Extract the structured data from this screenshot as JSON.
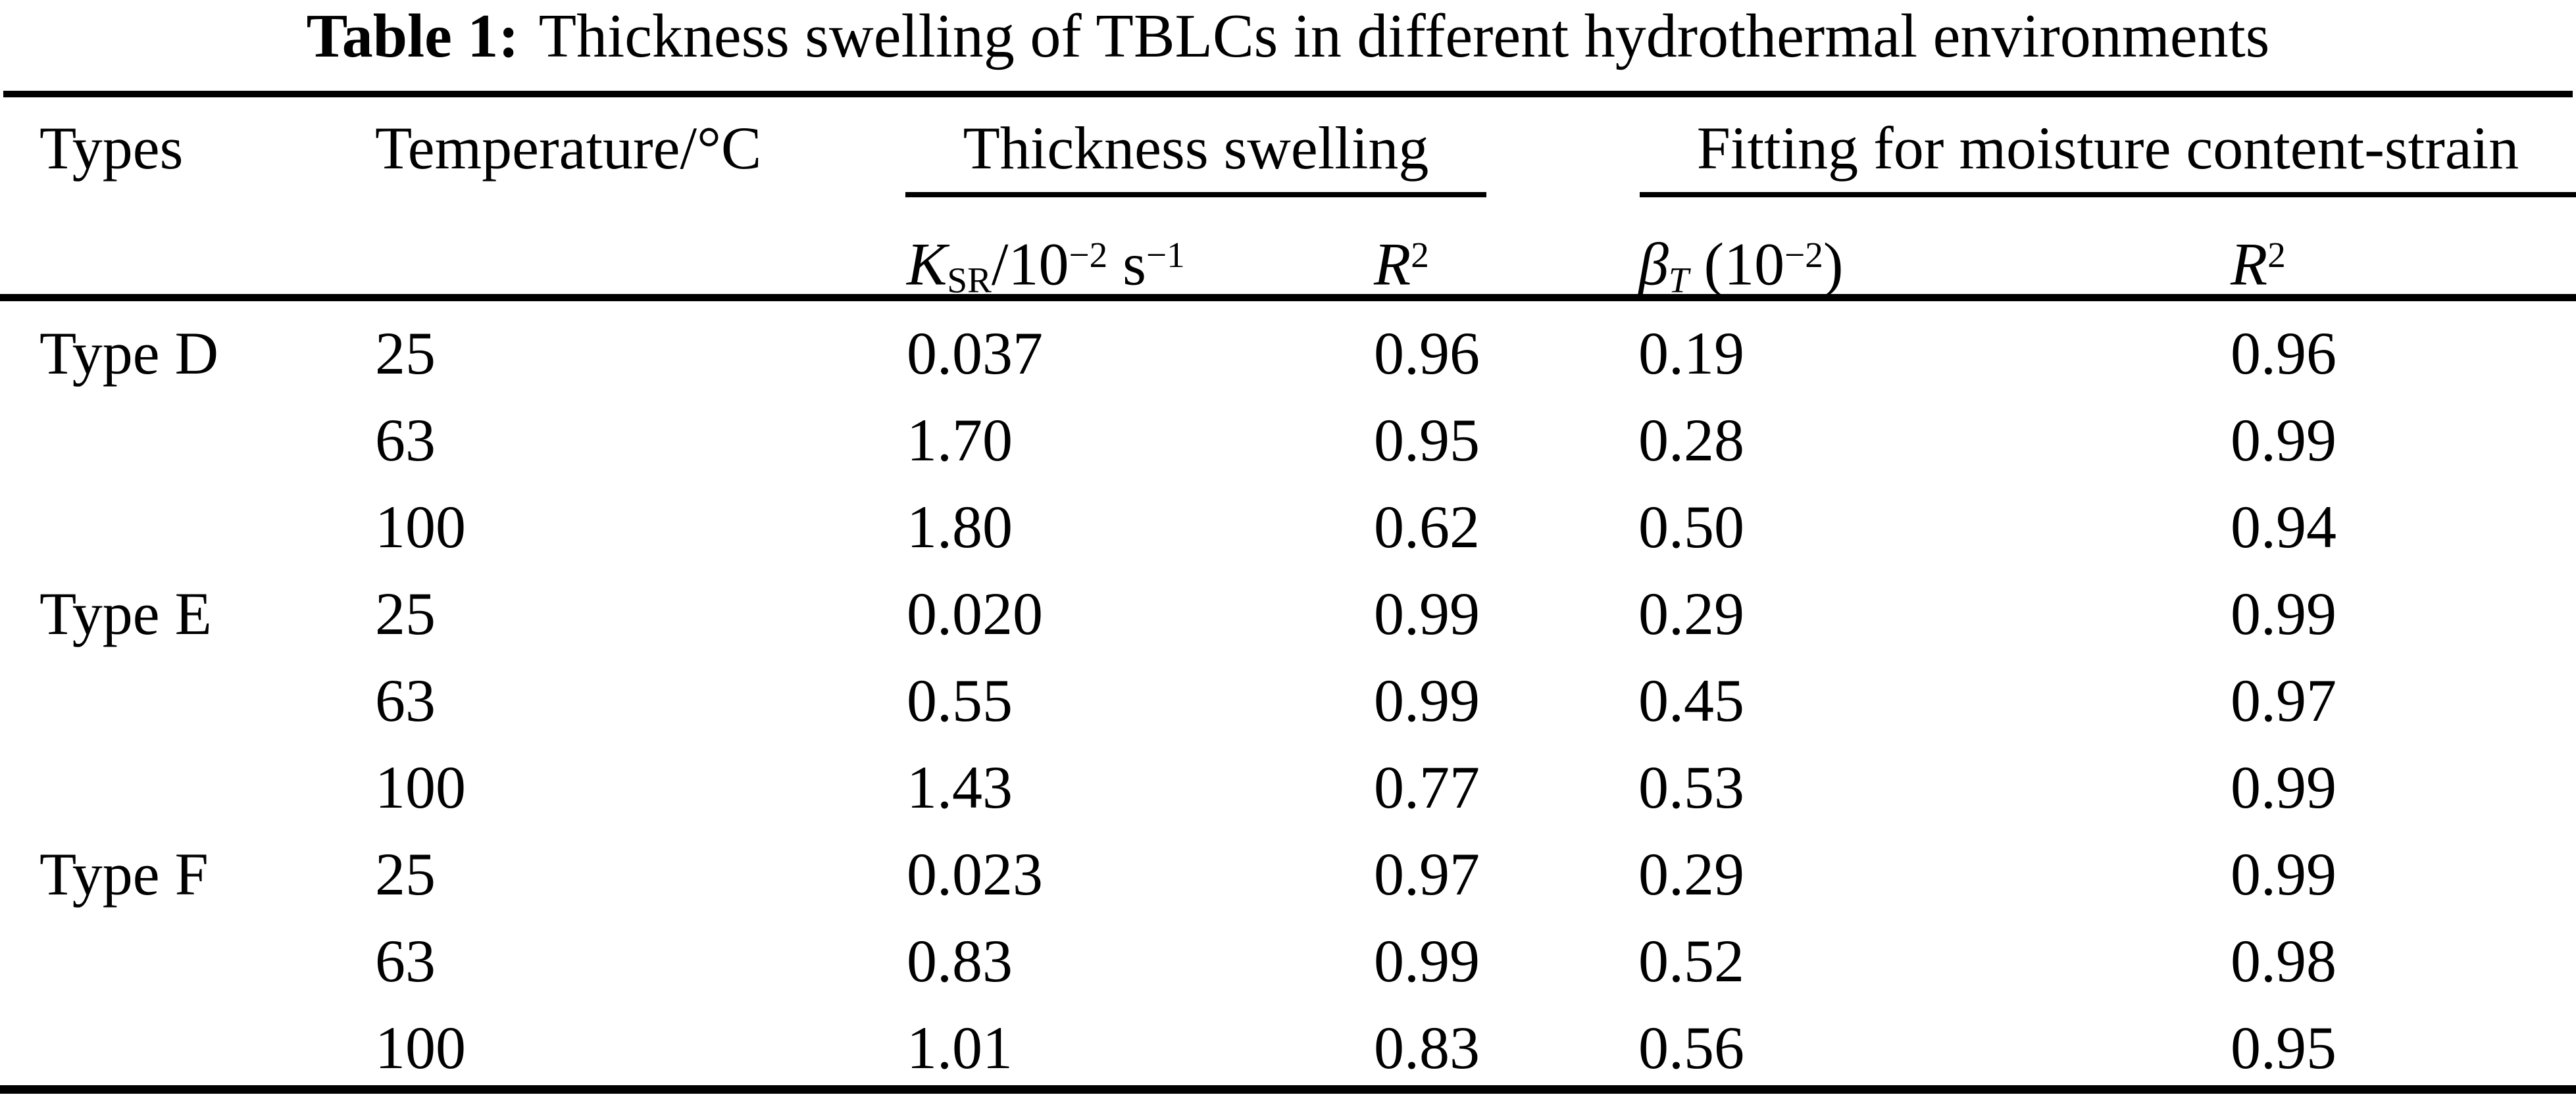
{
  "title": {
    "label": "Table 1:",
    "text": "Thickness swelling of TBLCs in different hydrothermal environments"
  },
  "table": {
    "group_headers": {
      "types": "Types",
      "temperature": "Temperature/°C",
      "thickness": "Thickness swelling",
      "fitting": "Fitting for moisture content-strain"
    },
    "subheaders": {
      "ksr": {
        "symbol": "K",
        "symbol_sub": "SR",
        "divisor": "/10",
        "divisor_exp": "−2",
        "unit": " s",
        "unit_exp": "−1"
      },
      "r2_thickness": {
        "symbol": "R",
        "exp": "2"
      },
      "beta": {
        "symbol": "β",
        "symbol_sub": "T",
        "factor_open": " (10",
        "factor_exp": "−2",
        "factor_close": ")"
      },
      "r2_fitting": {
        "symbol": "R",
        "exp": "2"
      }
    },
    "rows": [
      {
        "type": "Type D",
        "temp": "25",
        "ksr": "0.037",
        "r2a": "0.96",
        "beta": "0.19",
        "r2b": "0.96"
      },
      {
        "type": "",
        "temp": "63",
        "ksr": "1.70",
        "r2a": "0.95",
        "beta": "0.28",
        "r2b": "0.99"
      },
      {
        "type": "",
        "temp": "100",
        "ksr": "1.80",
        "r2a": "0.62",
        "beta": "0.50",
        "r2b": "0.94"
      },
      {
        "type": "Type E",
        "temp": "25",
        "ksr": "0.020",
        "r2a": "0.99",
        "beta": "0.29",
        "r2b": "0.99"
      },
      {
        "type": "",
        "temp": "63",
        "ksr": "0.55",
        "r2a": "0.99",
        "beta": "0.45",
        "r2b": "0.97"
      },
      {
        "type": "",
        "temp": "100",
        "ksr": "1.43",
        "r2a": "0.77",
        "beta": "0.53",
        "r2b": "0.99"
      },
      {
        "type": "Type F",
        "temp": "25",
        "ksr": "0.023",
        "r2a": "0.97",
        "beta": "0.29",
        "r2b": "0.99"
      },
      {
        "type": "",
        "temp": "63",
        "ksr": "0.83",
        "r2a": "0.99",
        "beta": "0.52",
        "r2b": "0.98"
      },
      {
        "type": "",
        "temp": "100",
        "ksr": "1.01",
        "r2a": "0.83",
        "beta": "0.56",
        "r2b": "0.95"
      }
    ]
  }
}
